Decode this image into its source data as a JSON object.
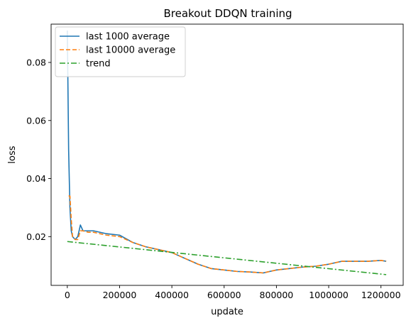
{
  "chart_data": {
    "type": "line",
    "title": "Breakout DDQN training",
    "xlabel": "update",
    "ylabel": "loss",
    "xlim": [
      -62000,
      1285000
    ],
    "ylim": [
      0.0032,
      0.0932
    ],
    "xticks": [
      0,
      200000,
      400000,
      600000,
      800000,
      1000000,
      1200000
    ],
    "yticks": [
      0.02,
      0.04,
      0.06,
      0.08
    ],
    "xtick_labels": [
      "0",
      "200000",
      "400000",
      "600000",
      "800000",
      "1000000",
      "1200000"
    ],
    "ytick_labels": [
      "0.02",
      "0.04",
      "0.06",
      "0.08"
    ],
    "grid": false,
    "legend_position": "top-left",
    "series": [
      {
        "name": "last 1000 average",
        "style": "solid",
        "color": "#1f77b4",
        "x": [
          0,
          2000,
          5000,
          10000,
          15000,
          20000,
          30000,
          40000,
          50000,
          60000,
          80000,
          100000,
          150000,
          200000,
          250000,
          300000,
          350000,
          400000,
          450000,
          500000,
          550000,
          600000,
          650000,
          700000,
          750000,
          800000,
          850000,
          900000,
          950000,
          1000000,
          1050000,
          1100000,
          1150000,
          1200000,
          1220000
        ],
        "y": [
          0.091,
          0.075,
          0.05,
          0.03,
          0.022,
          0.02,
          0.019,
          0.02,
          0.024,
          0.022,
          0.022,
          0.022,
          0.021,
          0.0205,
          0.018,
          0.0165,
          0.0155,
          0.0145,
          0.0125,
          0.0105,
          0.009,
          0.0085,
          0.008,
          0.0078,
          0.0075,
          0.0085,
          0.009,
          0.0095,
          0.0098,
          0.0105,
          0.0115,
          0.0115,
          0.0115,
          0.0118,
          0.0115
        ]
      },
      {
        "name": "last 10000 average",
        "style": "dashed",
        "color": "#ff7f0e",
        "x": [
          5000,
          10000,
          15000,
          20000,
          30000,
          40000,
          50000,
          60000,
          80000,
          100000,
          150000,
          200000,
          250000,
          300000,
          350000,
          400000,
          450000,
          500000,
          550000,
          600000,
          650000,
          700000,
          750000,
          800000,
          850000,
          900000,
          950000,
          1000000,
          1050000,
          1100000,
          1150000,
          1200000,
          1220000
        ],
        "y": [
          0.034,
          0.034,
          0.026,
          0.02,
          0.019,
          0.019,
          0.022,
          0.022,
          0.0215,
          0.0215,
          0.0205,
          0.02,
          0.018,
          0.0165,
          0.0155,
          0.0145,
          0.0125,
          0.0105,
          0.009,
          0.0085,
          0.008,
          0.0078,
          0.0075,
          0.0085,
          0.009,
          0.0095,
          0.0098,
          0.0105,
          0.0115,
          0.0115,
          0.0115,
          0.0118,
          0.0115
        ]
      },
      {
        "name": "trend",
        "style": "dashdot",
        "color": "#2ca02c",
        "x": [
          0,
          1220000
        ],
        "y": [
          0.0183,
          0.0069
        ]
      }
    ]
  }
}
